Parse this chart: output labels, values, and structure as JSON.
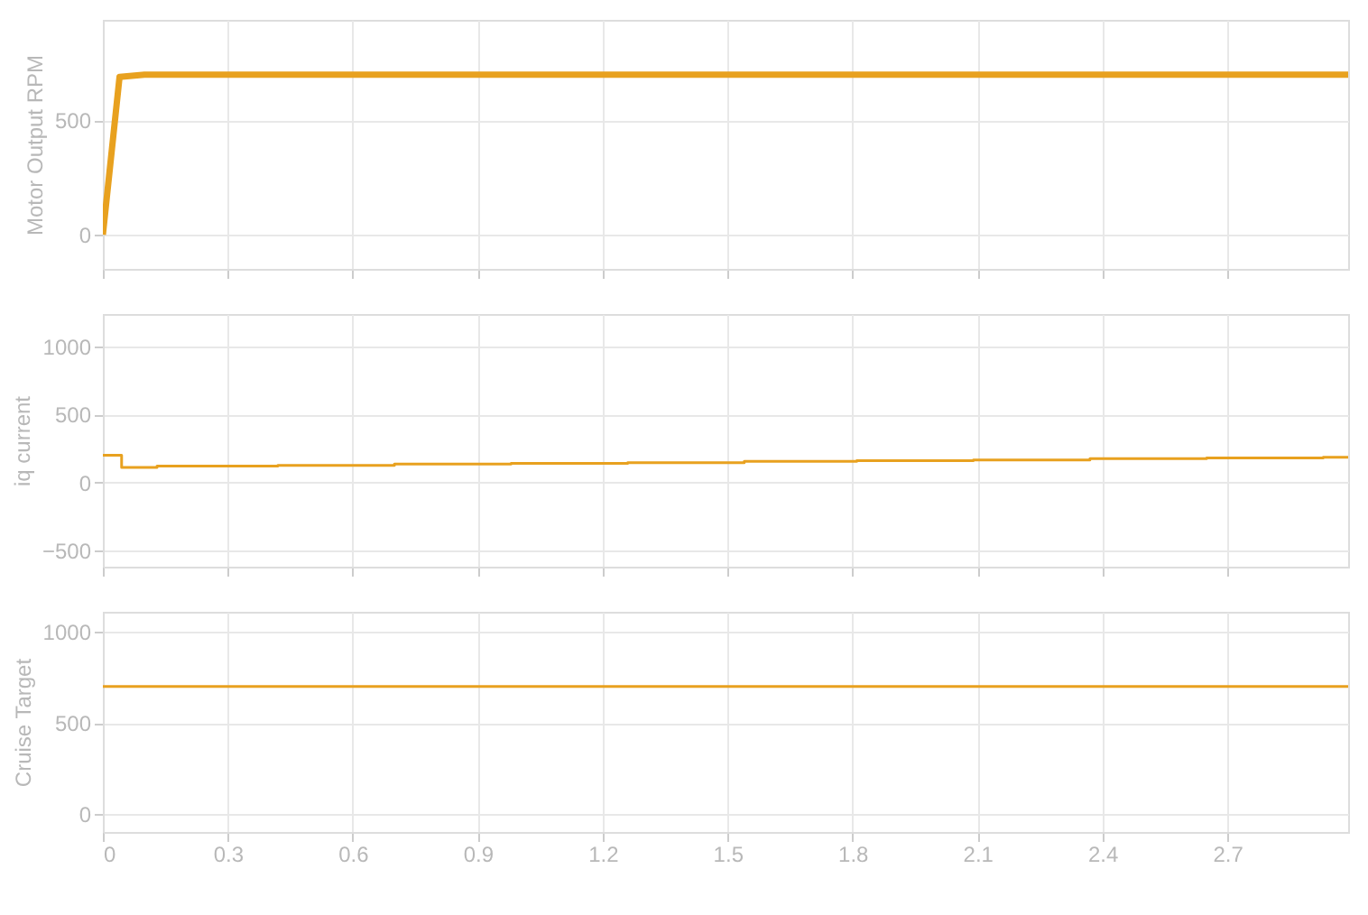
{
  "chart_data": [
    {
      "type": "line",
      "ylabel": "Motor Output RPM",
      "x": [
        0,
        0.04,
        0.1,
        2.99
      ],
      "series": [
        {
          "color": "#e8a11f",
          "values": [
            0,
            690,
            700,
            700
          ]
        }
      ],
      "xlim": [
        0,
        2.99
      ],
      "xticks": [
        0,
        0.3,
        0.6,
        0.9,
        1.2,
        1.5,
        1.8,
        2.1,
        2.4,
        2.7
      ],
      "ylim": [
        -150,
        940
      ],
      "yticks": [
        0,
        500
      ],
      "grid": true,
      "tick_labels": "y"
    },
    {
      "type": "step",
      "ylabel": "iq current",
      "x": [
        0,
        0.045,
        0.13,
        0.42,
        0.7,
        0.98,
        1.26,
        1.54,
        1.81,
        2.09,
        2.37,
        2.65,
        2.93,
        2.99
      ],
      "series": [
        {
          "color": "#e8a11f",
          "values": [
            200,
            110,
            120,
            125,
            135,
            140,
            145,
            155,
            160,
            165,
            175,
            180,
            185,
            185
          ]
        }
      ],
      "xlim": [
        0,
        2.99
      ],
      "xticks": [
        0,
        0.3,
        0.6,
        0.9,
        1.2,
        1.5,
        1.8,
        2.1,
        2.4,
        2.7
      ],
      "ylim": [
        -620,
        1240
      ],
      "yticks": [
        -500,
        0,
        500,
        1000
      ],
      "grid": true,
      "tick_labels": "y"
    },
    {
      "type": "line",
      "ylabel": "Cruise Target",
      "x": [
        0,
        2.99
      ],
      "series": [
        {
          "color": "#e8a11f",
          "values": [
            700,
            700
          ]
        }
      ],
      "xlim": [
        0,
        2.99
      ],
      "xticks": [
        0,
        0.3,
        0.6,
        0.9,
        1.2,
        1.5,
        1.8,
        2.1,
        2.4,
        2.7
      ],
      "ylim": [
        -100,
        1110
      ],
      "yticks": [
        0,
        500,
        1000
      ],
      "grid": true
    }
  ]
}
